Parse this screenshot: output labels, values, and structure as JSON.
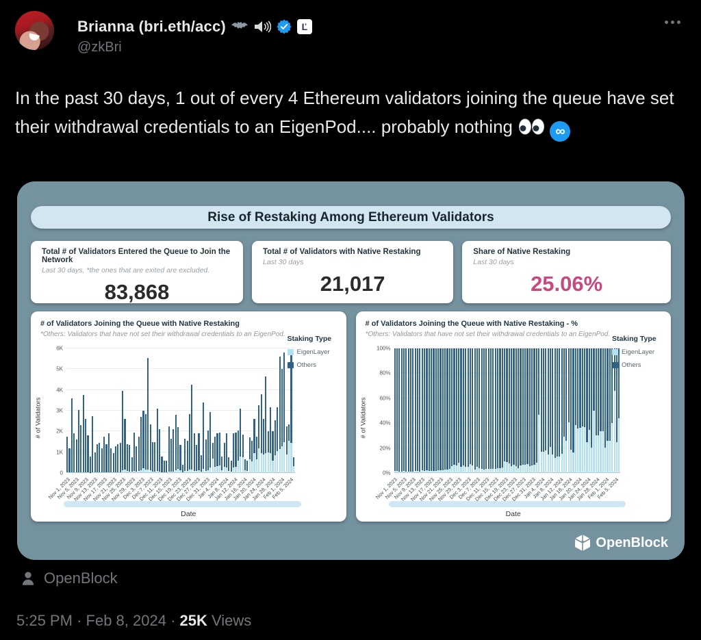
{
  "header": {
    "name": "Brianna (bri.eth/acc)",
    "handle": "@zkBri",
    "affiliate_glyph": "Ľ"
  },
  "tweet": {
    "text": "In the past 30 days, 1 out of every 4 Ethereum validators joining the queue have set their withdrawal credentials to an EigenPod.... probably nothing"
  },
  "dashboard": {
    "title": "Rise of Restaking Among Ethereum Validators",
    "stats": [
      {
        "title": "Total # of Validators Entered the Queue to Join the Network",
        "subtitle": "Last 30 days, *the ones that are exited are excluded.",
        "value": "83,868"
      },
      {
        "title": "Total # of Validators with Native Restaking",
        "subtitle": "Last 30 days",
        "value": "21,017"
      },
      {
        "title": "Share of Native Restaking",
        "subtitle": "Last 30 days",
        "value": "25.06%",
        "value_color": "#c6497f"
      }
    ],
    "brand": "OpenBlock"
  },
  "chart_data": {
    "type": "bar",
    "charts": [
      {
        "title": "# of Validators Joining the Queue with Native Restaking",
        "subtitle": "*Others: Validators that have not set their withdrawal credentials to an EigenPod.",
        "ylabel": "# of Validators",
        "xlabel": "Date",
        "mode": "stacked",
        "ylim": [
          0,
          6000
        ],
        "yticks": [
          "0",
          "1K",
          "2K",
          "3K",
          "4K",
          "5K",
          "6K"
        ]
      },
      {
        "title": "# of Validators Joining the Queue with Native Restaking - %",
        "subtitle": "*Others: Validators that have not set their withdrawal credentials to an EigenPod.",
        "ylabel": "# of Validators",
        "xlabel": "Date",
        "mode": "percent",
        "ylim": [
          0,
          100
        ],
        "yticks": [
          "0%",
          "20%",
          "40%",
          "60%",
          "80%",
          "100%"
        ]
      }
    ],
    "legend": {
      "title": "Staking Type",
      "items": [
        {
          "label": "EigenLayer",
          "color": "#b3e1f0"
        },
        {
          "label": "Others",
          "color": "#2f6284"
        }
      ]
    },
    "days": [
      {
        "d": "Nov 1, 2023",
        "t": 1750,
        "e": 30
      },
      {
        "d": "Nov 2, 2023",
        "t": 1200,
        "e": 20
      },
      {
        "d": "Nov 3, 2023",
        "t": 3600,
        "e": 30
      },
      {
        "d": "Nov 4, 2023",
        "t": 1900,
        "e": 25
      },
      {
        "d": "Nov 5, 2023",
        "t": 1600,
        "e": 30
      },
      {
        "d": "Nov 6, 2023",
        "t": 3050,
        "e": 40
      },
      {
        "d": "Nov 7, 2023",
        "t": 2300,
        "e": 30
      },
      {
        "d": "Nov 8, 2023",
        "t": 3750,
        "e": 40
      },
      {
        "d": "Nov 9, 2023",
        "t": 2600,
        "e": 35
      },
      {
        "d": "Nov 10, 2023",
        "t": 1800,
        "e": 25
      },
      {
        "d": "Nov 11, 2023",
        "t": 800,
        "e": 15
      },
      {
        "d": "Nov 12, 2023",
        "t": 2750,
        "e": 30
      },
      {
        "d": "Nov 13, 2023",
        "t": 1000,
        "e": 20
      },
      {
        "d": "Nov 14, 2023",
        "t": 1400,
        "e": 25
      },
      {
        "d": "Nov 15, 2023",
        "t": 1450,
        "e": 30
      },
      {
        "d": "Nov 16, 2023",
        "t": 1200,
        "e": 20
      },
      {
        "d": "Nov 17, 2023",
        "t": 1750,
        "e": 30
      },
      {
        "d": "Nov 18, 2023",
        "t": 1400,
        "e": 25
      },
      {
        "d": "Nov 19, 2023",
        "t": 1900,
        "e": 30
      },
      {
        "d": "Nov 20, 2023",
        "t": 1200,
        "e": 25
      },
      {
        "d": "Nov 21, 2023",
        "t": 950,
        "e": 20
      },
      {
        "d": "Nov 22, 2023",
        "t": 1300,
        "e": 30
      },
      {
        "d": "Nov 23, 2023",
        "t": 1400,
        "e": 35
      },
      {
        "d": "Nov 24, 2023",
        "t": 1450,
        "e": 40
      },
      {
        "d": "Nov 25, 2023",
        "t": 3950,
        "e": 120
      },
      {
        "d": "Nov 26, 2023",
        "t": 2600,
        "e": 150
      },
      {
        "d": "Nov 27, 2023",
        "t": 1400,
        "e": 90
      },
      {
        "d": "Nov 28, 2023",
        "t": 1350,
        "e": 80
      },
      {
        "d": "Nov 29, 2023",
        "t": 750,
        "e": 60
      },
      {
        "d": "Nov 30, 2023",
        "t": 1950,
        "e": 100
      },
      {
        "d": "Dec 1, 2023",
        "t": 1300,
        "e": 80
      },
      {
        "d": "Dec 2, 2023",
        "t": 1750,
        "e": 90
      },
      {
        "d": "Dec 3, 2023",
        "t": 2700,
        "e": 140
      },
      {
        "d": "Dec 4, 2023",
        "t": 3000,
        "e": 220
      },
      {
        "d": "Dec 5, 2023",
        "t": 2850,
        "e": 180
      },
      {
        "d": "Dec 6, 2023",
        "t": 5550,
        "e": 160
      },
      {
        "d": "Dec 7, 2023",
        "t": 2350,
        "e": 120
      },
      {
        "d": "Dec 8, 2023",
        "t": 1500,
        "e": 60
      },
      {
        "d": "Dec 9, 2023",
        "t": 1500,
        "e": 50
      },
      {
        "d": "Dec 10, 2023",
        "t": 3100,
        "e": 90
      },
      {
        "d": "Dec 11, 2023",
        "t": 2100,
        "e": 70
      },
      {
        "d": "Dec 12, 2023",
        "t": 800,
        "e": 25
      },
      {
        "d": "Dec 13, 2023",
        "t": 600,
        "e": 20
      },
      {
        "d": "Dec 14, 2023",
        "t": 600,
        "e": 20
      },
      {
        "d": "Dec 15, 2023",
        "t": 2250,
        "e": 70
      },
      {
        "d": "Dec 16, 2023",
        "t": 1650,
        "e": 60
      },
      {
        "d": "Dec 17, 2023",
        "t": 2100,
        "e": 80
      },
      {
        "d": "Dec 18, 2023",
        "t": 2800,
        "e": 130
      },
      {
        "d": "Dec 19, 2023",
        "t": 2200,
        "e": 200
      },
      {
        "d": "Dec 20, 2023",
        "t": 1350,
        "e": 120
      },
      {
        "d": "Dec 21, 2023",
        "t": 400,
        "e": 30
      },
      {
        "d": "Dec 22, 2023",
        "t": 1650,
        "e": 90
      },
      {
        "d": "Dec 23, 2023",
        "t": 1550,
        "e": 100
      },
      {
        "d": "Dec 24, 2023",
        "t": 2850,
        "e": 150
      },
      {
        "d": "Dec 25, 2023",
        "t": 4250,
        "e": 160
      },
      {
        "d": "Dec 26, 2023",
        "t": 1900,
        "e": 110
      },
      {
        "d": "Dec 27, 2023",
        "t": 1350,
        "e": 90
      },
      {
        "d": "Dec 28, 2023",
        "t": 1900,
        "e": 130
      },
      {
        "d": "Dec 29, 2023",
        "t": 850,
        "e": 60
      },
      {
        "d": "Dec 30, 2023",
        "t": 3400,
        "e": 190
      },
      {
        "d": "Dec 31, 2023",
        "t": 1600,
        "e": 100
      },
      {
        "d": "Jan 1, 2024",
        "t": 2050,
        "e": 140
      },
      {
        "d": "Jan 2, 2024",
        "t": 2950,
        "e": 250
      },
      {
        "d": "Jan 3, 2024",
        "t": 1450,
        "e": 680
      },
      {
        "d": "Jan 4, 2024",
        "t": 1750,
        "e": 300
      },
      {
        "d": "Jan 5, 2024",
        "t": 1900,
        "e": 320
      },
      {
        "d": "Jan 6, 2024",
        "t": 1950,
        "e": 350
      },
      {
        "d": "Jan 7, 2024",
        "t": 800,
        "e": 120
      },
      {
        "d": "Jan 8, 2024",
        "t": 1450,
        "e": 300
      },
      {
        "d": "Jan 9, 2024",
        "t": 1900,
        "e": 280
      },
      {
        "d": "Jan 10, 2024",
        "t": 750,
        "e": 90
      },
      {
        "d": "Jan 11, 2024",
        "t": 600,
        "e": 80
      },
      {
        "d": "Jan 12, 2024",
        "t": 1900,
        "e": 250
      },
      {
        "d": "Jan 13, 2024",
        "t": 1950,
        "e": 300
      },
      {
        "d": "Jan 14, 2024",
        "t": 2050,
        "e": 600
      },
      {
        "d": "Jan 15, 2024",
        "t": 3100,
        "e": 800
      },
      {
        "d": "Jan 16, 2024",
        "t": 1850,
        "e": 750
      },
      {
        "d": "Jan 17, 2024",
        "t": 650,
        "e": 120
      },
      {
        "d": "Jan 18, 2024",
        "t": 600,
        "e": 100
      },
      {
        "d": "Jan 19, 2024",
        "t": 1700,
        "e": 650
      },
      {
        "d": "Jan 20, 2024",
        "t": 1550,
        "e": 550
      },
      {
        "d": "Jan 21, 2024",
        "t": 2600,
        "e": 950
      },
      {
        "d": "Jan 22, 2024",
        "t": 1750,
        "e": 650
      },
      {
        "d": "Jan 23, 2024",
        "t": 3250,
        "e": 1200
      },
      {
        "d": "Jan 24, 2024",
        "t": 3800,
        "e": 950
      },
      {
        "d": "Jan 25, 2024",
        "t": 2600,
        "e": 900
      },
      {
        "d": "Jan 26, 2024",
        "t": 4650,
        "e": 950
      },
      {
        "d": "Jan 27, 2024",
        "t": 2000,
        "e": 1000
      },
      {
        "d": "Jan 28, 2024",
        "t": 3150,
        "e": 950
      },
      {
        "d": "Jan 29, 2024",
        "t": 2000,
        "e": 600
      },
      {
        "d": "Jan 30, 2024",
        "t": 2550,
        "e": 850
      },
      {
        "d": "Jan 31, 2024",
        "t": 3150,
        "e": 1050
      },
      {
        "d": "Feb 1, 2024",
        "t": 5600,
        "e": 1150
      },
      {
        "d": "Feb 2, 2024",
        "t": 5000,
        "e": 1300
      },
      {
        "d": "Feb 3, 2024",
        "t": 5800,
        "e": 1500
      },
      {
        "d": "Feb 4, 2024",
        "t": 2250,
        "e": 900
      },
      {
        "d": "Feb 5, 2024",
        "t": 2350,
        "e": 1550
      },
      {
        "d": "Feb 6, 2024",
        "t": 5900,
        "e": 1450
      },
      {
        "d": "Feb 7, 2024",
        "t": 750,
        "e": 330
      }
    ]
  },
  "source": {
    "label": "OpenBlock"
  },
  "meta": {
    "time": "5:25 PM",
    "sep": "·",
    "date": "Feb 8, 2024",
    "views_count": "25K",
    "views_label": "Views"
  }
}
